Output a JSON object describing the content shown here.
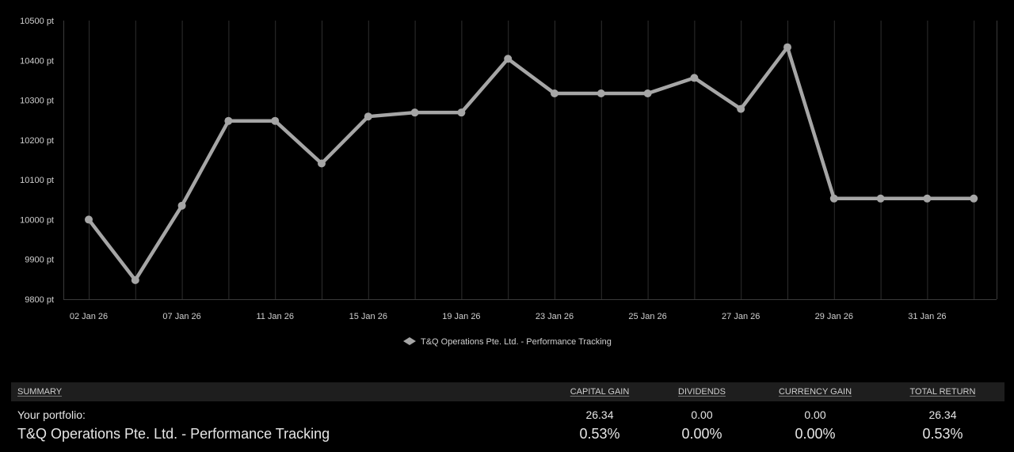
{
  "chart_data": {
    "type": "line",
    "title": "",
    "xlabel": "",
    "ylabel": "",
    "y_unit": "pt",
    "ylim": [
      9800,
      10500
    ],
    "y_ticks": [
      9800,
      9900,
      10000,
      10100,
      10200,
      10300,
      10400,
      10500
    ],
    "y_tick_labels": [
      "9800 pt",
      "9900 pt",
      "10000 pt",
      "10100 pt",
      "10200 pt",
      "10300 pt",
      "10400 pt",
      "10500 pt"
    ],
    "x_tick_labels": [
      "02 Jan 26",
      "07 Jan 26",
      "11 Jan 26",
      "15 Jan 26",
      "19 Jan 26",
      "23 Jan 26",
      "25 Jan 26",
      "27 Jan 26",
      "29 Jan 26",
      "31 Jan 26"
    ],
    "x_tick_positions": [
      0,
      2,
      4,
      6,
      8,
      10,
      12,
      14,
      16,
      18
    ],
    "grid": "vertical",
    "legend_placement": "bottom-center",
    "series": [
      {
        "name": "T&Q Operations Pte. Ltd. - Performance Tracking",
        "color": "#a6a6a6",
        "values": [
          10000,
          9848,
          10035,
          10248,
          10248,
          10141,
          10259,
          10269,
          10269,
          10404,
          10317,
          10317,
          10317,
          10356,
          10278,
          10433,
          10053,
          10053,
          10053,
          10053
        ]
      }
    ]
  },
  "summary": {
    "headers": {
      "summary": "SUMMARY",
      "capital_gain": "CAPITAL GAIN",
      "dividends": "DIVIDENDS",
      "currency_gain": "CURRENCY GAIN",
      "total_return": "TOTAL RETURN"
    },
    "portfolio_row": {
      "label": "Your portfolio:",
      "capital_gain": "26.34",
      "dividends": "0.00",
      "currency_gain": "0.00",
      "total_return": "26.34"
    },
    "percent_row": {
      "label": "T&Q Operations Pte. Ltd. - Performance Tracking",
      "capital_gain": "0.53%",
      "dividends": "0.00%",
      "currency_gain": "0.00%",
      "total_return": "0.53%"
    }
  }
}
